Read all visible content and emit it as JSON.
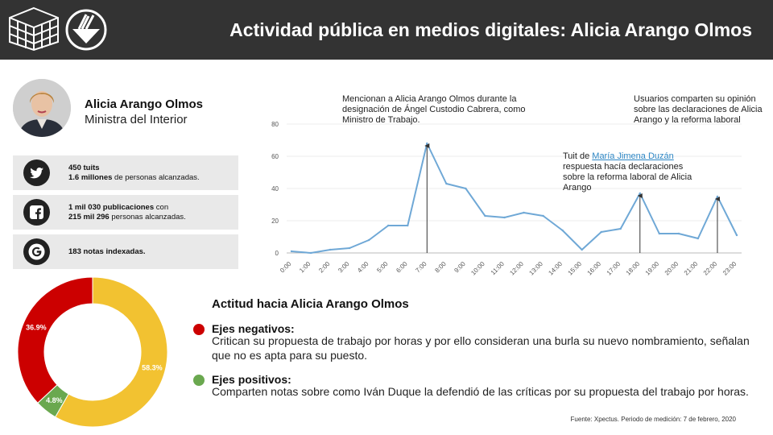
{
  "header": {
    "title": "Actividad pública en medios digitales: Alicia Arango Olmos"
  },
  "profile": {
    "name": "Alicia Arango Olmos",
    "role": "Ministra del Interior"
  },
  "stats": {
    "twitter": {
      "icon": "twitter-icon",
      "bold1": "450 tuits",
      "bold2": "1.6 millones",
      "text2": " de personas alcanzadas."
    },
    "facebook": {
      "icon": "facebook-icon",
      "bold1": "1 mil 030 publicaciones",
      "text1": " con",
      "bold2": "215 mil 296",
      "text2": " personas alcanzadas."
    },
    "google": {
      "icon": "google-icon",
      "bold1": "183 notas indexadas."
    }
  },
  "annotations": {
    "a1": "Mencionan a Alicia Arango Olmos durante la designación de Ángel Custodio Cabrera, como Ministro de Trabajo.",
    "a2_prefix": "Tuit de ",
    "a2_link": "María Jimena Duzán",
    "a2_rest": " respuesta hacía declaraciones sobre la reforma laboral de Alicia Arango",
    "a3": "Usuarios comparten su opinión sobre las declaraciones de Alicia Arango y la reforma laboral"
  },
  "chart_data": [
    {
      "type": "line",
      "categories": [
        "0:00",
        "1:00",
        "2:00",
        "3:00",
        "4:00",
        "5:00",
        "6:00",
        "7:00",
        "8:00",
        "9:00",
        "10:00",
        "11:00",
        "12:00",
        "13:00",
        "14:00",
        "15:00",
        "16:00",
        "17:00",
        "18:00",
        "19:00",
        "20:00",
        "21:00",
        "22:00",
        "23:00"
      ],
      "values": [
        1,
        0,
        2,
        3,
        8,
        17,
        17,
        68,
        43,
        40,
        23,
        22,
        25,
        23,
        14,
        2,
        13,
        15,
        37,
        12,
        12,
        9,
        35,
        11
      ],
      "ylim": [
        0,
        80
      ],
      "yticks": [
        0,
        20,
        40,
        60,
        80
      ],
      "grid": true,
      "color": "#6fa8d6",
      "arrow_at": [
        "7:00",
        "18:00",
        "22:00"
      ]
    },
    {
      "type": "pie",
      "donut": true,
      "slices": [
        {
          "label": "58.3%",
          "value": 58.3,
          "color": "#f2c231"
        },
        {
          "label": "4.8%",
          "value": 4.8,
          "color": "#6aa84f"
        },
        {
          "label": "36.9%",
          "value": 36.9,
          "color": "#cc0000"
        }
      ]
    }
  ],
  "attitude": {
    "title": "Actitud hacia Alicia Arango Olmos",
    "negative_head": "Ejes negativos:",
    "negative_text": "Critican su propuesta de trabajo por horas y por ello consideran una burla su nuevo nombramiento, señalan que no es apta para su puesto.",
    "negative_color": "#cc0000",
    "positive_head": "Ejes positivos:",
    "positive_text": "Comparten notas sobre como Iván Duque la defendió de las críticas por su propuesta del trabajo por horas.",
    "positive_color": "#6aa84f"
  },
  "source": "Fuente: Xpectus. Periodo de medición:  7 de febrero, 2020"
}
